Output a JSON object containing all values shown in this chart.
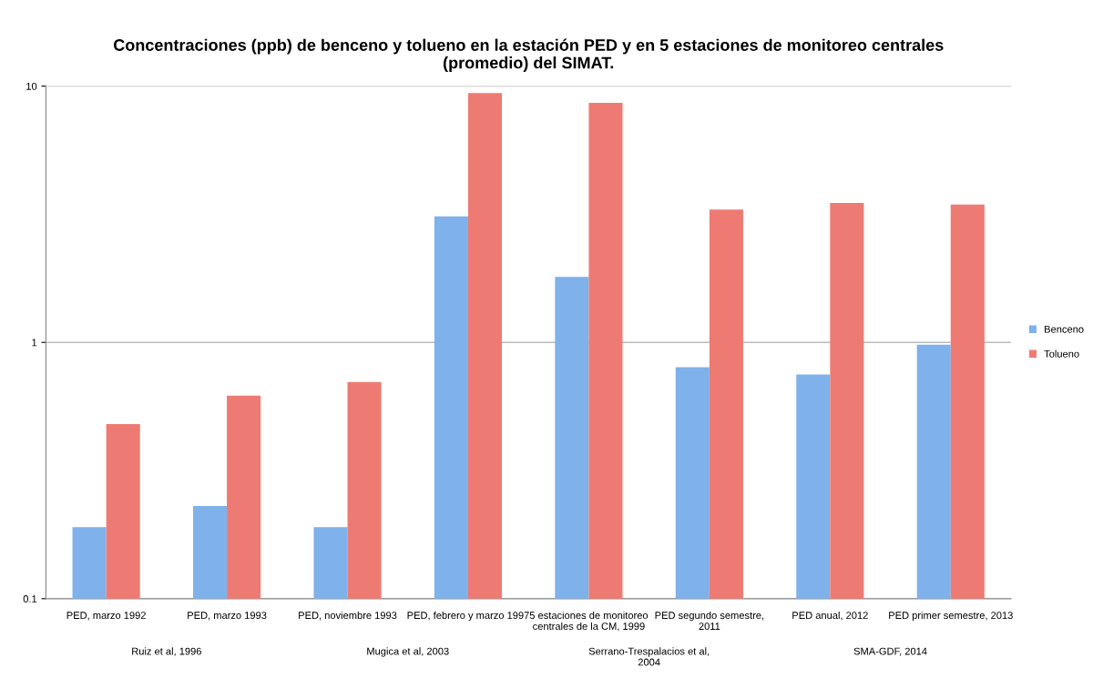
{
  "chart_data": {
    "type": "bar",
    "title": "Concentraciones (ppb) de benceno y tolueno en la estación PED y en 5 estaciones de monitoreo centrales\n(promedio) del SIMAT.",
    "categories": [
      "PED, marzo 1992",
      "PED, marzo 1993",
      "PED, noviembre 1993",
      "PED, febrero y marzo 1997",
      "5 estaciones de monitoreo\ncentrales de la CM, 1999",
      "PED segundo semestre,\n2011",
      "PED anual, 2012",
      "PED primer semestre, 2013"
    ],
    "series": [
      {
        "name": "Benceno",
        "color": "#7fb1ea",
        "values": [
          0.19,
          0.23,
          0.19,
          3.1,
          1.8,
          0.8,
          0.75,
          0.98
        ]
      },
      {
        "name": "Tolueno",
        "color": "#ee7b73",
        "values": [
          0.48,
          0.62,
          0.7,
          9.4,
          8.6,
          3.3,
          3.5,
          3.45
        ]
      }
    ],
    "log": true,
    "ylim": [
      0.1,
      10
    ],
    "yticks": [
      0.1,
      1,
      10
    ],
    "grid": "y",
    "legend": "right",
    "annotations": [
      "Ruiz et al, 1996",
      "Mugica et al, 2003",
      "Serrano-Trespalacios et al,\n2004",
      "SMA-GDF, 2014"
    ]
  }
}
